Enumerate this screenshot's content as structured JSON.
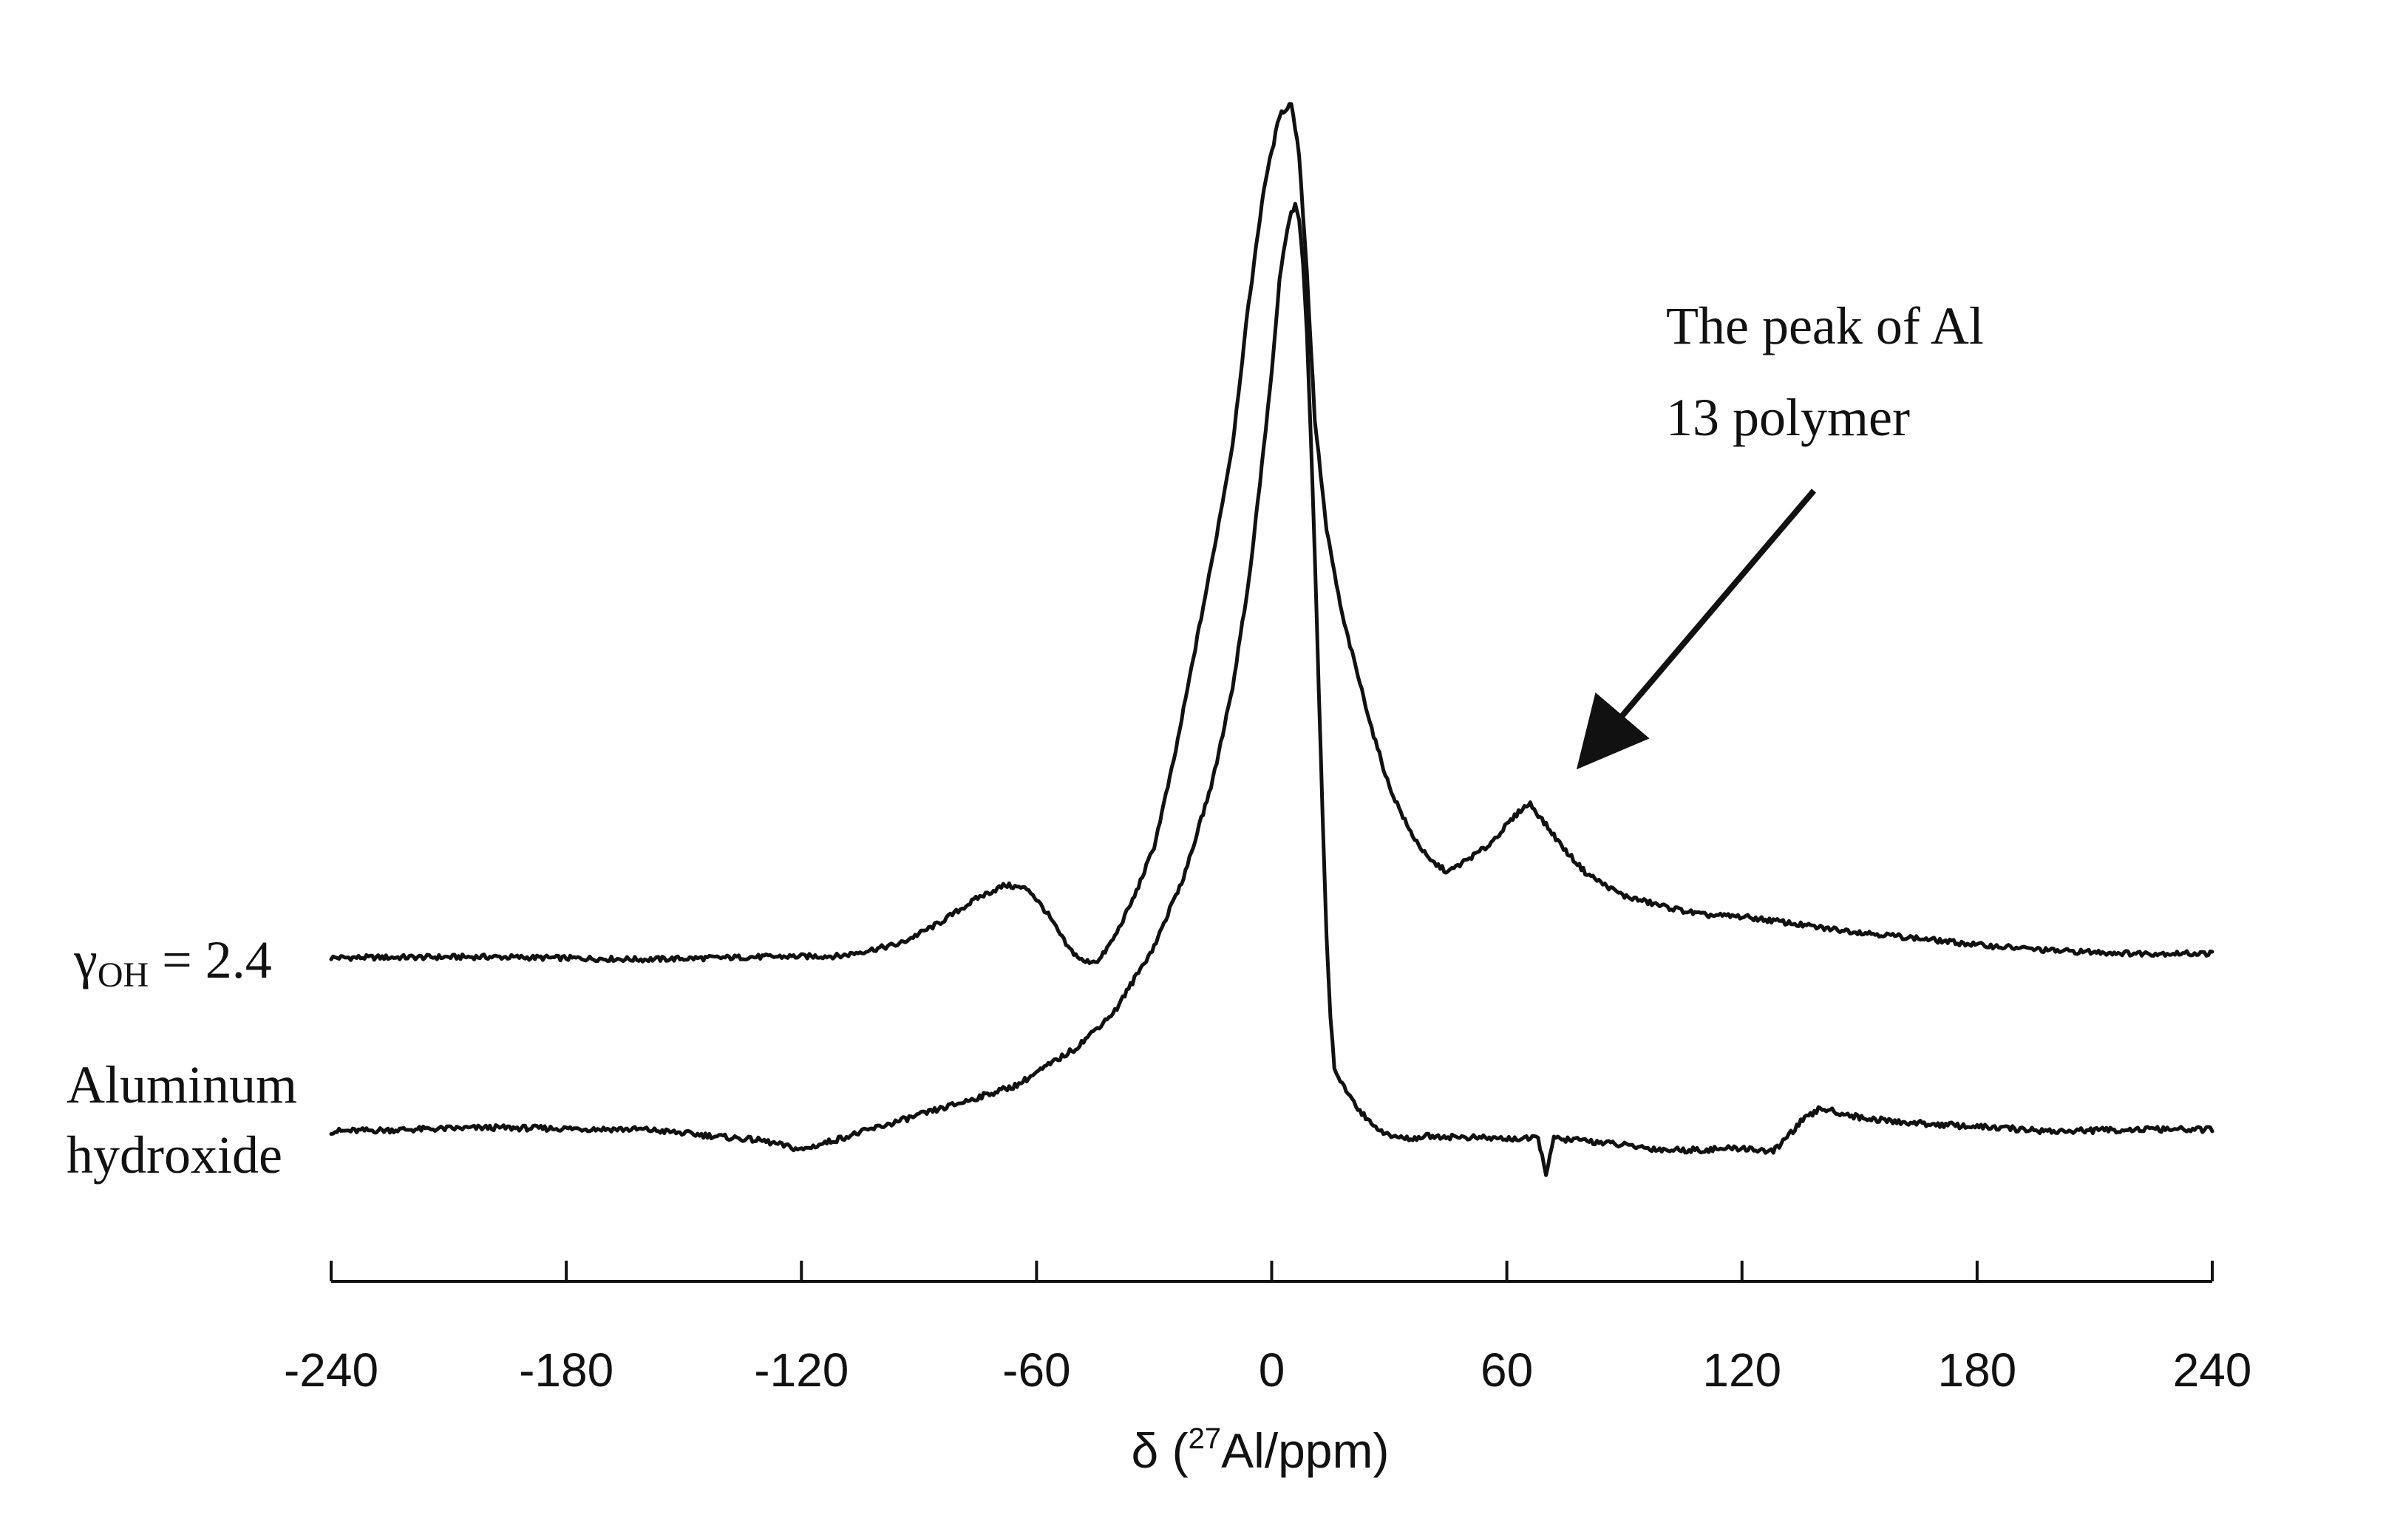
{
  "chart_data": {
    "type": "line",
    "title": "",
    "xlabel": {
      "prefix": "δ (",
      "superscript": "27",
      "suffix": "Al/ppm)"
    },
    "ylabel": "",
    "xlim": [
      -240,
      240
    ],
    "x_ticks": [
      -240,
      -180,
      -120,
      -60,
      0,
      60,
      120,
      180,
      240
    ],
    "x_tick_labels": [
      "-240",
      "-180",
      "-120",
      "-60",
      "0",
      "60",
      "120",
      "180",
      "240"
    ],
    "grid": false,
    "legend": "none",
    "line_color": "#111111",
    "series": [
      {
        "label": {
          "symbol": "γ",
          "subscript": "OH",
          "rest": " = 2.4"
        },
        "x": [
          -240,
          -200,
          -160,
          -130,
          -110,
          -95,
          -85,
          -75,
          -68,
          -62,
          -57,
          -52,
          -48,
          -44,
          -40,
          -35,
          -30,
          -25,
          -20,
          -15,
          -10,
          -6,
          -2,
          2,
          5,
          7,
          9,
          11,
          14,
          18,
          22,
          26,
          30,
          35,
          40,
          45,
          50,
          55,
          60,
          64,
          66,
          70,
          75,
          80,
          85,
          90,
          100,
          110,
          120,
          130,
          140,
          160,
          180,
          200,
          220,
          240
        ],
        "y": [
          0,
          0.001,
          -0.002,
          0.001,
          0.002,
          0.016,
          0.04,
          0.07,
          0.085,
          0.08,
          0.05,
          0.012,
          -0.005,
          -0.003,
          0.025,
          0.072,
          0.13,
          0.23,
          0.35,
          0.47,
          0.6,
          0.76,
          0.9,
          0.985,
          1.0,
          0.94,
          0.8,
          0.63,
          0.5,
          0.4,
          0.33,
          0.26,
          0.2,
          0.15,
          0.115,
          0.1,
          0.115,
          0.13,
          0.155,
          0.175,
          0.18,
          0.155,
          0.125,
          0.1,
          0.085,
          0.072,
          0.06,
          0.05,
          0.048,
          0.042,
          0.035,
          0.025,
          0.015,
          0.008,
          0.005,
          0.005
        ]
      },
      {
        "label": {
          "line1": "Aluminum",
          "line2": "hydroxide"
        },
        "x": [
          -240,
          -200,
          -160,
          -130,
          -120,
          -100,
          -80,
          -65,
          -50,
          -40,
          -30,
          -22,
          -15,
          -10,
          -6,
          -3,
          0,
          2,
          4,
          5,
          6,
          7,
          8,
          9,
          10,
          11,
          12,
          13,
          14,
          15,
          16,
          18,
          20,
          22,
          25,
          30,
          35,
          40,
          60,
          68,
          70,
          72,
          80,
          100,
          110,
          120,
          128,
          135,
          140,
          150,
          160,
          180,
          200,
          220,
          240
        ],
        "y": [
          0,
          0.004,
          0.002,
          -0.01,
          -0.02,
          0.005,
          0.03,
          0.05,
          0.09,
          0.13,
          0.2,
          0.28,
          0.38,
          0.48,
          0.59,
          0.7,
          0.82,
          0.92,
          0.975,
          0.995,
          1.0,
          0.985,
          0.94,
          0.86,
          0.75,
          0.62,
          0.48,
          0.34,
          0.21,
          0.12,
          0.07,
          0.05,
          0.04,
          0.025,
          0.01,
          -0.005,
          -0.008,
          -0.005,
          -0.008,
          -0.008,
          -0.045,
          -0.008,
          -0.01,
          -0.02,
          -0.02,
          -0.018,
          -0.022,
          0.01,
          0.025,
          0.015,
          0.01,
          0.005,
          0.0,
          0.002,
          0.002
        ]
      }
    ],
    "annotation": {
      "line1": "The peak of Al",
      "line2": "13 polymer",
      "points_to_x": 66
    }
  }
}
